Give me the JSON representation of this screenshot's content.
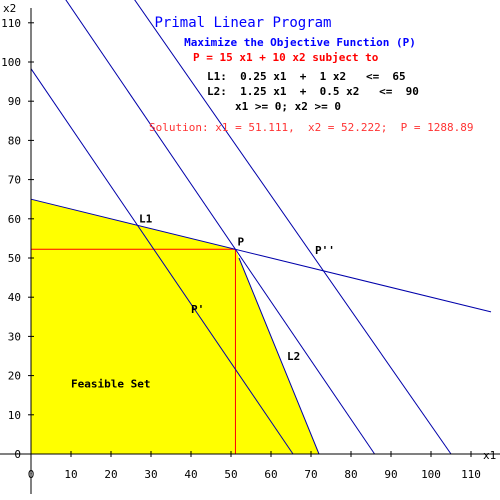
{
  "chart_data": {
    "type": "line",
    "title": "Primal Linear Program",
    "subtitle": "Maximize the Objective Function (P)",
    "objective": "P =  15 x1  +  10 x2   subject to",
    "constraints": [
      "L1:  0.25 x1  +  1 x2   <=  65",
      "L2:  1.25 x1  +  0.5 x2   <=  90",
      "x1 >= 0; x2 >= 0"
    ],
    "solution_text": "Solution: x1 = 51.111,  x2 = 52.222;  P = 1288.89",
    "xlabel": "x1",
    "ylabel": "x2",
    "xlim": [
      0,
      115
    ],
    "ylim": [
      0,
      115
    ],
    "x_ticks": [
      0,
      10,
      20,
      30,
      40,
      50,
      60,
      70,
      80,
      90,
      100,
      110
    ],
    "y_ticks": [
      0,
      10,
      20,
      30,
      40,
      50,
      60,
      70,
      80,
      90,
      100,
      110
    ],
    "feasible_set": {
      "label": "Feasible Set",
      "vertices": [
        [
          0,
          0
        ],
        [
          0,
          65
        ],
        [
          51.111,
          52.222
        ],
        [
          72,
          0
        ]
      ]
    },
    "series": [
      {
        "name": "L1",
        "points": [
          [
            0,
            65
          ],
          [
            115,
            36.25
          ]
        ]
      },
      {
        "name": "L2",
        "points": [
          [
            52,
            50
          ],
          [
            72,
            0
          ]
        ]
      },
      {
        "name": "P'",
        "points": [
          [
            0,
            98.3
          ],
          [
            65.5,
            0
          ]
        ]
      },
      {
        "name": "P''",
        "points": [
          [
            0,
            128.9
          ],
          [
            85.9,
            0
          ]
        ]
      },
      {
        "name": "",
        "points": [
          [
            17,
            128.9
          ],
          [
            105,
            0
          ]
        ]
      }
    ],
    "optimum": {
      "label": "P",
      "x": 51.111,
      "y": 52.222
    },
    "annotations": [
      {
        "label": "L1",
        "x": 27,
        "y": 59
      },
      {
        "label": "L2",
        "x": 64,
        "y": 24
      },
      {
        "label": "P'",
        "x": 40,
        "y": 36
      },
      {
        "label": "P''",
        "x": 71,
        "y": 51
      },
      {
        "label": "Feasible Set",
        "x": 10,
        "y": 17
      }
    ],
    "colors": {
      "feasible": "#ffff00",
      "line": "#0000aa",
      "guide": "#ff0000",
      "title": "#0000ff",
      "objective": "#ff0000",
      "solution": "#ff3333",
      "text": "#000000"
    },
    "grid": false
  }
}
